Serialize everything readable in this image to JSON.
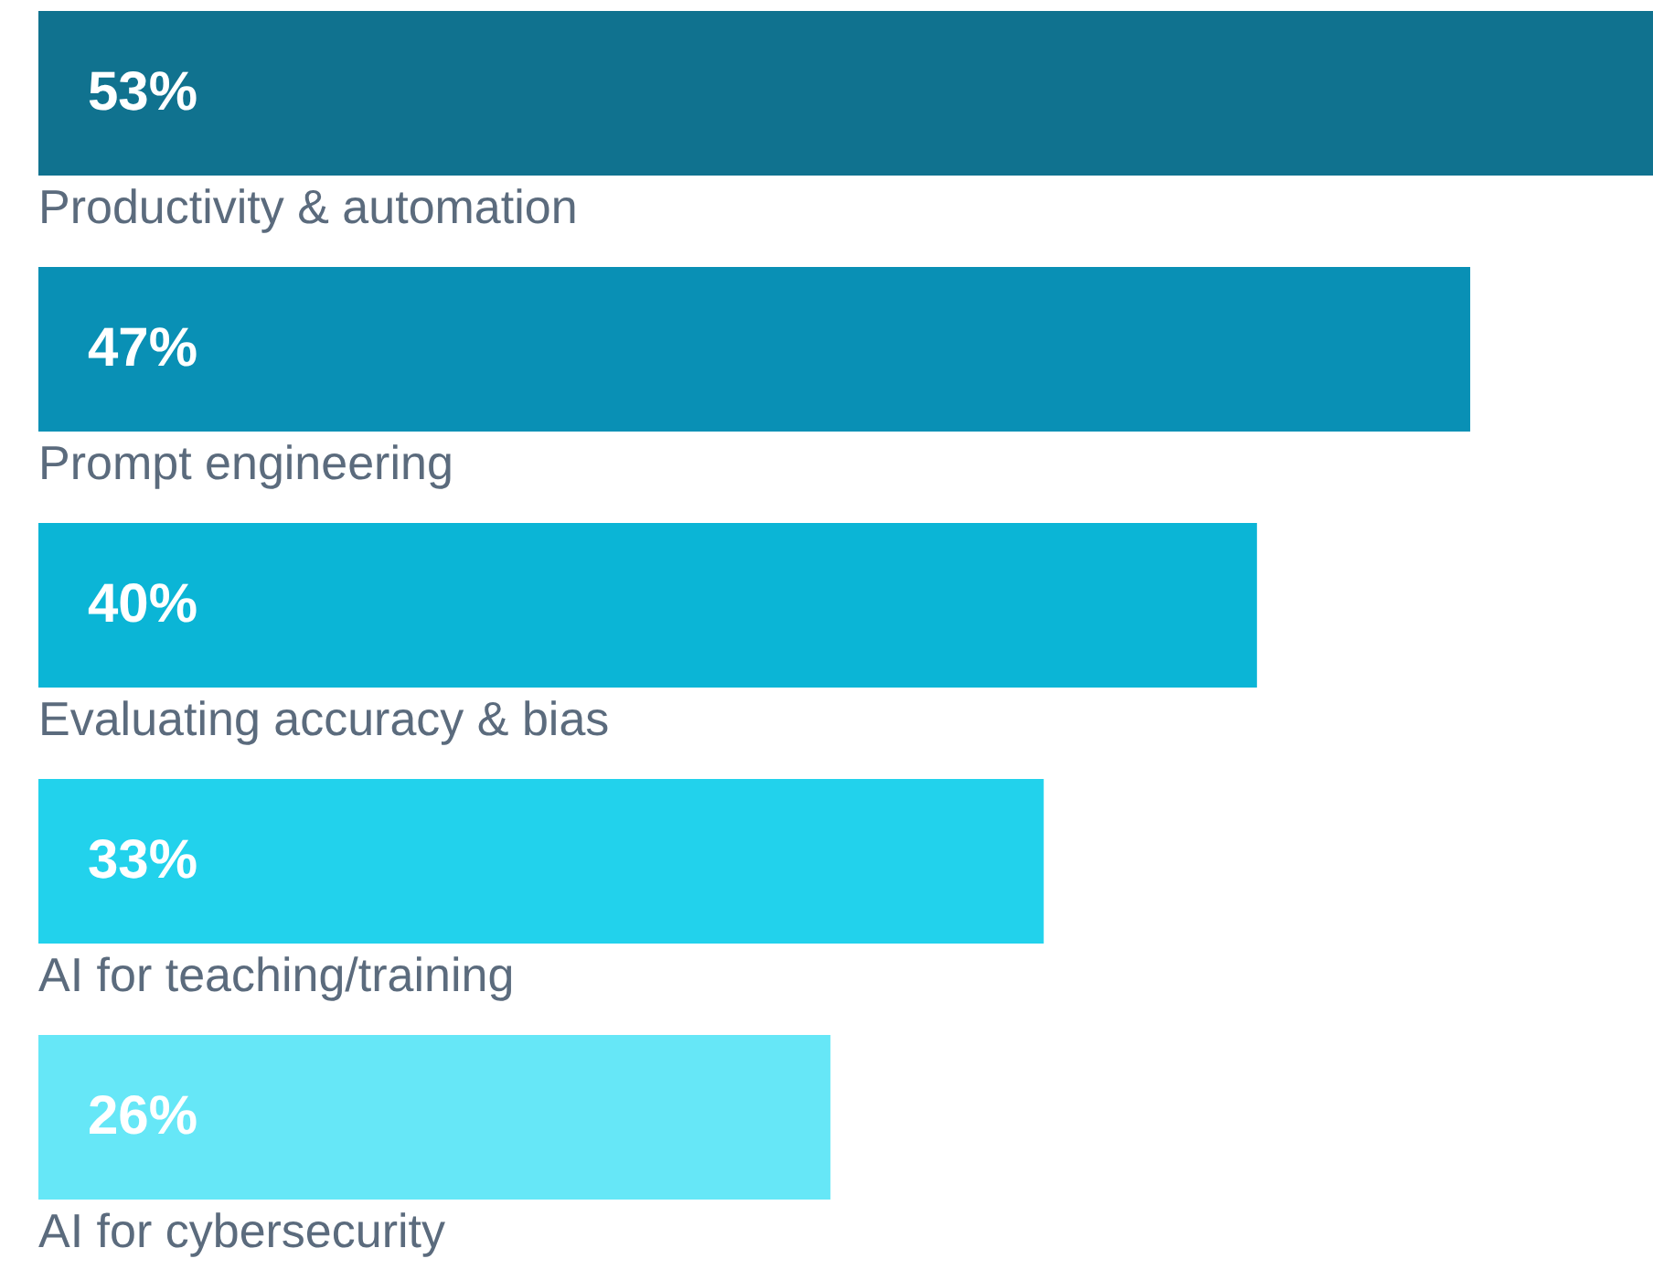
{
  "chart_data": {
    "type": "bar",
    "orientation": "horizontal",
    "categories": [
      "Productivity & automation",
      "Prompt engineering",
      "Evaluating accuracy & bias",
      "AI for teaching/training",
      "AI for cybersecurity"
    ],
    "values": [
      53,
      47,
      40,
      33,
      26
    ],
    "value_labels": [
      "53%",
      "47%",
      "40%",
      "33%",
      "26%"
    ],
    "colors": [
      "#10728f",
      "#0990b5",
      "#0bb5d6",
      "#22d2ec",
      "#66e7f7"
    ]
  }
}
